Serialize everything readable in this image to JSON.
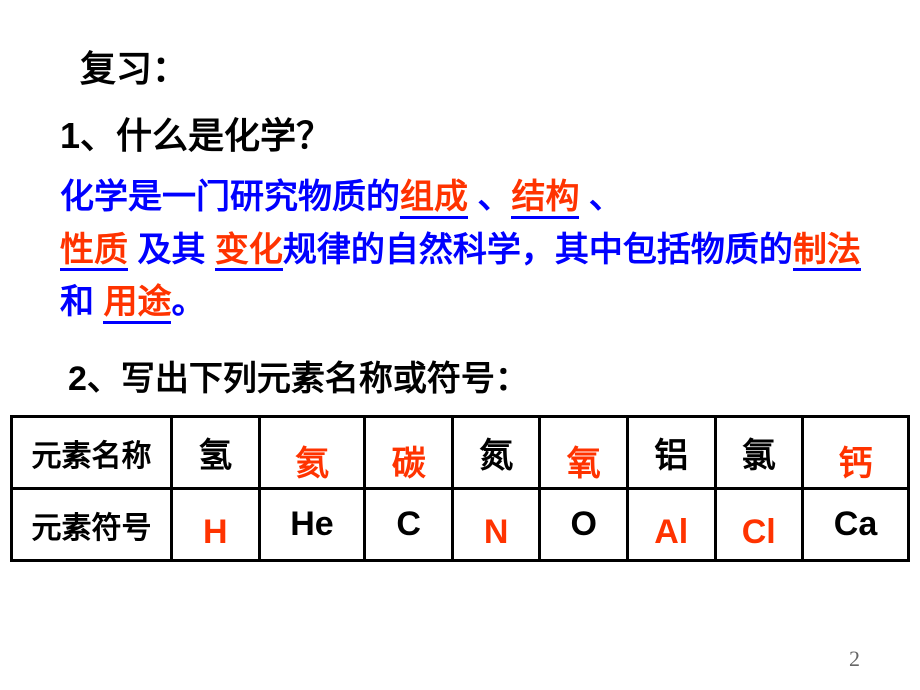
{
  "review_title": "复习：",
  "q1": "1、什么是化学？",
  "answer_parts": {
    "p1": "化学是一门研究物质的",
    "blank1": "组成",
    "sep1": " 、",
    "blank2": "结构",
    "sep2": " 、",
    "blank3": "性质",
    "p2": " 及其 ",
    "blank4": "变化",
    "p3": "规律的自然科学，其中包括物质的",
    "blank5": "制法",
    "p4": " 和 ",
    "blank6": "用途",
    "p5": "。"
  },
  "q2": "2、写出下列元素名称或符号：",
  "table": {
    "row_headers": [
      "元素名称",
      "元素符号"
    ],
    "names": [
      {
        "text": "氢",
        "color": "black"
      },
      {
        "text": "氦",
        "color": "red",
        "offset": true
      },
      {
        "text": "碳",
        "color": "red",
        "offset": true
      },
      {
        "text": "氮",
        "color": "black"
      },
      {
        "text": "氧",
        "color": "red",
        "offset": true
      },
      {
        "text": "铝",
        "color": "black"
      },
      {
        "text": "氯",
        "color": "black"
      },
      {
        "text": "钙",
        "color": "red",
        "offset": true
      }
    ],
    "symbols": [
      {
        "text": "H",
        "color": "red",
        "offset": true
      },
      {
        "text": "He",
        "color": "black"
      },
      {
        "text": "C",
        "color": "black"
      },
      {
        "text": "N",
        "color": "red",
        "offset": true
      },
      {
        "text": "O",
        "color": "black"
      },
      {
        "text": "Al",
        "color": "red",
        "offset": true
      },
      {
        "text": "Cl",
        "color": "red",
        "offset": true
      },
      {
        "text": "Ca",
        "color": "black"
      }
    ]
  },
  "page_number": "2",
  "colors": {
    "blue": "#0000ff",
    "red": "#ff3300",
    "black": "#000000"
  }
}
